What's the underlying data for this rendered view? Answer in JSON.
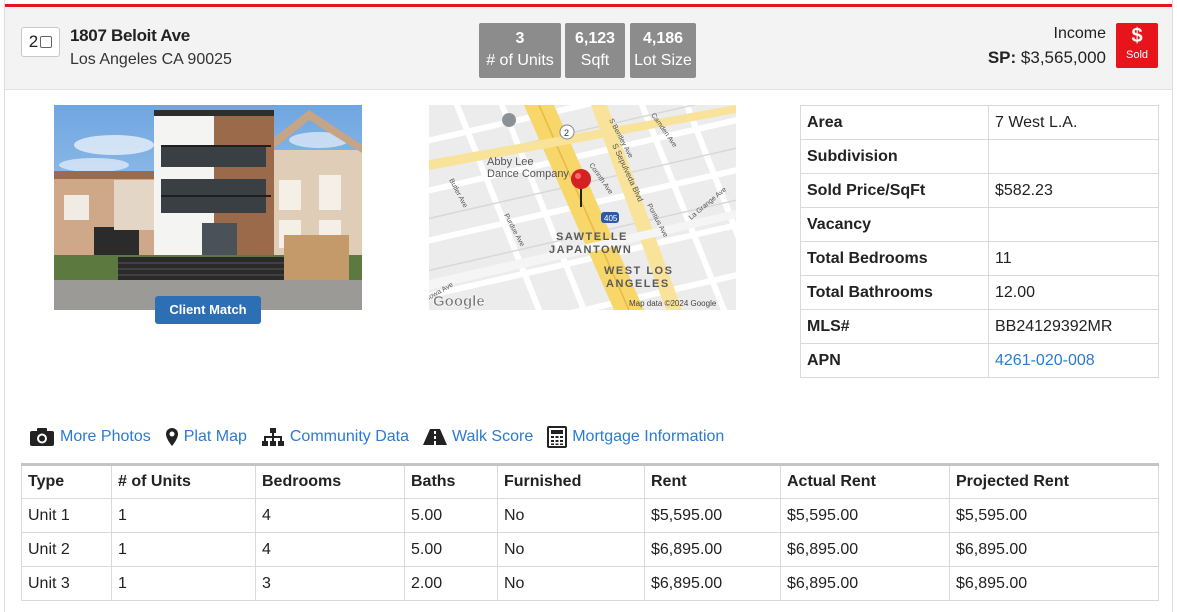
{
  "header": {
    "select_number": "2",
    "address_line1": "1807 Beloit Ave",
    "address_line2": "Los Angeles CA 90025",
    "stats": [
      {
        "value": "3",
        "label": "# of Units"
      },
      {
        "value": "6,123",
        "label": "Sqft"
      },
      {
        "value": "4,186",
        "label": "Lot Size"
      }
    ],
    "property_type": "Income",
    "sale_price_label": "SP:",
    "sale_price": "$3,565,000",
    "status_icon": "$",
    "status": "Sold"
  },
  "photo": {
    "button_label": "Client Match"
  },
  "map": {
    "labels": {
      "poi": "Abby Lee Dance Company",
      "district": "SAWTELLE JAPANTOWN",
      "area": "WEST LOS ANGELES",
      "road_sepulveda": "S Sepulveda Blvd",
      "road_bentley": "S Bentley Ave",
      "road_camden": "Camden Ave",
      "road_corinth": "Corinth Ave",
      "road_butler": "Butler Ave",
      "road_purdue": "Purdue Ave",
      "road_pontius": "Pontius Ave",
      "road_lagrange": "La Grange Ave",
      "road_iowa": "Iowa Ave",
      "shield_2": "2",
      "shield_405": "405",
      "logo": "Google",
      "attribution": "Map data ©2024 Google"
    }
  },
  "details": [
    {
      "label": "Area",
      "value": "7 West L.A."
    },
    {
      "label": "Subdivision",
      "value": ""
    },
    {
      "label": "Sold Price/SqFt",
      "value": "$582.23"
    },
    {
      "label": "Vacancy",
      "value": ""
    },
    {
      "label": "Total Bedrooms",
      "value": "11"
    },
    {
      "label": "Total Bathrooms",
      "value": "12.00"
    },
    {
      "label": "MLS#",
      "value": "BB24129392MR"
    },
    {
      "label": "APN",
      "value": "4261-020-008"
    }
  ],
  "links": [
    {
      "label": "More Photos",
      "icon": "camera-icon"
    },
    {
      "label": "Plat Map",
      "icon": "map-marker-icon"
    },
    {
      "label": "Community Data",
      "icon": "sitemap-icon"
    },
    {
      "label": "Walk Score",
      "icon": "road-icon"
    },
    {
      "label": "Mortgage Information",
      "icon": "calculator-icon"
    }
  ],
  "units_table": {
    "headers": [
      "Type",
      "# of Units",
      "Bedrooms",
      "Baths",
      "Furnished",
      "Rent",
      "Actual Rent",
      "Projected Rent"
    ],
    "rows": [
      [
        "Unit 1",
        "1",
        "4",
        "5.00",
        "No",
        "$5,595.00",
        "$5,595.00",
        "$5,595.00"
      ],
      [
        "Unit 2",
        "1",
        "4",
        "5.00",
        "No",
        "$6,895.00",
        "$6,895.00",
        "$6,895.00"
      ],
      [
        "Unit 3",
        "1",
        "3",
        "2.00",
        "No",
        "$6,895.00",
        "$6,895.00",
        "$6,895.00"
      ]
    ]
  },
  "colors": {
    "accent_red": "#e8141c",
    "link_blue": "#2a7bd1",
    "button_blue": "#2d6fb5",
    "stat_gray": "#8c8c8c"
  }
}
